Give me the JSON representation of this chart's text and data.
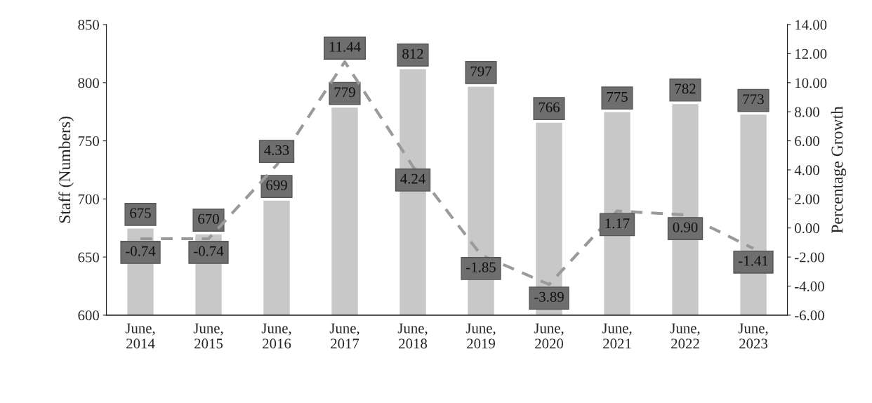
{
  "chart_data": {
    "type": "bar",
    "categories": [
      "June,\n2014",
      "June,\n2015",
      "June,\n2016",
      "June,\n2017",
      "June,\n2018",
      "June,\n2019",
      "June,\n2020",
      "June,\n2021",
      "June,\n2022",
      "June,\n2023"
    ],
    "ylabel": "Staff (Numbers)",
    "y2label": "Percentage Growth",
    "series": [
      {
        "color": "#c8c8c8",
        "values": [
          675,
          670,
          699,
          779,
          812,
          797,
          766,
          775,
          782,
          773
        ],
        "value_labels": [
          "675",
          "670",
          "699",
          "779",
          "812",
          "797",
          "766",
          "775",
          "782",
          "773"
        ]
      },
      {
        "type": "line",
        "axis": "y2",
        "color": "#9a9a9a",
        "line_style": "dashed",
        "marker": "none",
        "values": [
          -0.74,
          -0.74,
          4.33,
          11.44,
          4.24,
          -1.85,
          -3.89,
          1.17,
          0.9,
          -1.41
        ],
        "value_labels": [
          "-0.74",
          "-0.74",
          "4.33",
          "11.44",
          "4.24",
          "-1.85",
          "-3.89",
          "1.17",
          "0.90",
          "-1.41"
        ]
      }
    ],
    "ylim": [
      600,
      850
    ],
    "yticks": [
      600,
      650,
      700,
      750,
      800,
      850
    ],
    "y2lim": [
      -6,
      14
    ],
    "y2ticks": [
      {
        "value": -6,
        "label": "-6.00"
      },
      {
        "value": -4,
        "label": "-4.00"
      },
      {
        "value": -2,
        "label": "-2.00"
      },
      {
        "value": 0,
        "label": "0.00"
      },
      {
        "value": 2,
        "label": "2.00"
      },
      {
        "value": 4,
        "label": "4.00"
      },
      {
        "value": 6,
        "label": "6.00"
      },
      {
        "value": 8,
        "label": "8.00"
      },
      {
        "value": 10,
        "label": "10.00"
      },
      {
        "value": 12,
        "label": "12.00"
      },
      {
        "value": 14,
        "label": "14.00"
      }
    ],
    "grid": false,
    "legend": false
  }
}
